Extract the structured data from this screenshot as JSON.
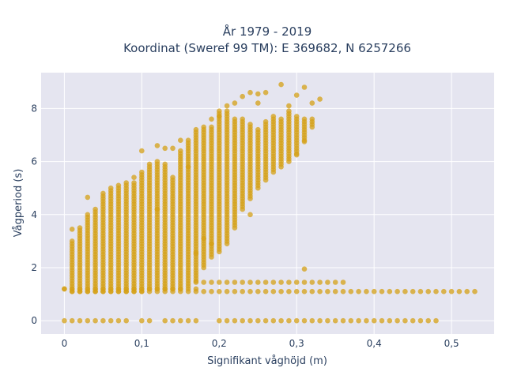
{
  "chart_data": {
    "type": "scatter",
    "title_line1": "År 1979 - 2019",
    "title_line2": "Koordinat (Sweref 99 TM): E 369682, N 6257266",
    "xlabel": "Signifikant våghöjd (m)",
    "ylabel": "Vågperiod (s)",
    "xlim": [
      -0.03,
      0.555
    ],
    "ylim": [
      -0.5,
      9.35
    ],
    "x_ticks": [
      0,
      0.1,
      0.2,
      0.3,
      0.4,
      0.5
    ],
    "x_tick_labels": [
      "0",
      "0,1",
      "0,2",
      "0,3",
      "0,4",
      "0,5"
    ],
    "y_ticks": [
      0,
      2,
      4,
      6,
      8
    ],
    "y_tick_labels": [
      "0",
      "2",
      "4",
      "6",
      "8"
    ],
    "grid": true,
    "background_color": "#e5e5f0",
    "marker_color": "#d4a017",
    "x_step": 0.01,
    "column_ranges": [
      {
        "x": 0.01,
        "ymin": 1.1,
        "ymax": 3.0
      },
      {
        "x": 0.02,
        "ymin": 1.1,
        "ymax": 3.4
      },
      {
        "x": 0.03,
        "ymin": 1.1,
        "ymax": 4.0
      },
      {
        "x": 0.04,
        "ymin": 1.1,
        "ymax": 4.2
      },
      {
        "x": 0.05,
        "ymin": 1.1,
        "ymax": 4.8
      },
      {
        "x": 0.06,
        "ymin": 1.1,
        "ymax": 5.0
      },
      {
        "x": 0.07,
        "ymin": 1.1,
        "ymax": 5.1
      },
      {
        "x": 0.08,
        "ymin": 1.1,
        "ymax": 5.2
      },
      {
        "x": 0.09,
        "ymin": 1.1,
        "ymax": 5.2
      },
      {
        "x": 0.1,
        "ymin": 1.1,
        "ymax": 5.6
      },
      {
        "x": 0.11,
        "ymin": 1.2,
        "ymax": 5.9
      },
      {
        "x": 0.12,
        "ymin": 1.2,
        "ymax": 6.0
      },
      {
        "x": 0.13,
        "ymin": 1.2,
        "ymax": 5.9
      },
      {
        "x": 0.14,
        "ymin": 1.2,
        "ymax": 5.4
      },
      {
        "x": 0.15,
        "ymin": 1.2,
        "ymax": 6.4
      },
      {
        "x": 0.16,
        "ymin": 1.3,
        "ymax": 6.8
      },
      {
        "x": 0.17,
        "ymin": 1.5,
        "ymax": 7.2
      },
      {
        "x": 0.18,
        "ymin": 2.0,
        "ymax": 7.3
      },
      {
        "x": 0.19,
        "ymin": 2.4,
        "ymax": 7.3
      },
      {
        "x": 0.2,
        "ymin": 2.6,
        "ymax": 7.9
      },
      {
        "x": 0.21,
        "ymin": 2.9,
        "ymax": 7.9
      },
      {
        "x": 0.22,
        "ymin": 3.5,
        "ymax": 7.6
      },
      {
        "x": 0.23,
        "ymin": 4.2,
        "ymax": 7.6
      },
      {
        "x": 0.24,
        "ymin": 4.6,
        "ymax": 7.4
      },
      {
        "x": 0.25,
        "ymin": 5.0,
        "ymax": 7.2
      },
      {
        "x": 0.26,
        "ymin": 5.3,
        "ymax": 7.5
      },
      {
        "x": 0.27,
        "ymin": 5.6,
        "ymax": 7.7
      },
      {
        "x": 0.28,
        "ymin": 5.8,
        "ymax": 7.6
      },
      {
        "x": 0.29,
        "ymin": 6.0,
        "ymax": 7.9
      },
      {
        "x": 0.3,
        "ymin": 6.3,
        "ymax": 7.7
      },
      {
        "x": 0.31,
        "ymin": 6.8,
        "ymax": 7.6
      },
      {
        "x": 0.32,
        "ymin": 7.3,
        "ymax": 7.6
      }
    ],
    "bottom_rows": [
      {
        "y": 1.1,
        "xmin": 0.01,
        "xmax": 0.53
      },
      {
        "y": 1.2,
        "xmin": 0.0,
        "xmax": 0.17
      },
      {
        "y": 1.45,
        "xmin": 0.17,
        "xmax": 0.36
      }
    ],
    "zero_row": {
      "y": 0,
      "x_values": [
        0.0,
        0.01,
        0.02,
        0.03,
        0.04,
        0.05,
        0.06,
        0.07,
        0.08,
        0.1,
        0.11,
        0.13,
        0.14,
        0.15,
        0.16,
        0.17,
        0.2,
        0.21,
        0.22,
        0.23,
        0.24,
        0.25,
        0.26,
        0.27,
        0.28,
        0.29,
        0.3,
        0.31,
        0.32,
        0.33,
        0.34,
        0.35,
        0.36,
        0.37,
        0.38,
        0.39,
        0.4,
        0.41,
        0.42,
        0.43,
        0.44,
        0.45,
        0.46,
        0.47,
        0.48
      ]
    },
    "outliers": [
      {
        "x": 0.0,
        "y": 1.2
      },
      {
        "x": 0.01,
        "y": 3.45
      },
      {
        "x": 0.02,
        "y": 3.5
      },
      {
        "x": 0.03,
        "y": 4.65
      },
      {
        "x": 0.09,
        "y": 5.4
      },
      {
        "x": 0.1,
        "y": 6.4
      },
      {
        "x": 0.12,
        "y": 6.6
      },
      {
        "x": 0.12,
        "y": 4.2
      },
      {
        "x": 0.13,
        "y": 6.5
      },
      {
        "x": 0.14,
        "y": 6.5
      },
      {
        "x": 0.15,
        "y": 6.8
      },
      {
        "x": 0.16,
        "y": 5.8
      },
      {
        "x": 0.19,
        "y": 7.6
      },
      {
        "x": 0.2,
        "y": 7.7
      },
      {
        "x": 0.21,
        "y": 8.1
      },
      {
        "x": 0.22,
        "y": 8.2
      },
      {
        "x": 0.23,
        "y": 8.45
      },
      {
        "x": 0.24,
        "y": 8.6
      },
      {
        "x": 0.25,
        "y": 8.55
      },
      {
        "x": 0.25,
        "y": 8.2
      },
      {
        "x": 0.26,
        "y": 8.6
      },
      {
        "x": 0.28,
        "y": 8.9
      },
      {
        "x": 0.29,
        "y": 8.1
      },
      {
        "x": 0.3,
        "y": 8.5
      },
      {
        "x": 0.31,
        "y": 8.8
      },
      {
        "x": 0.32,
        "y": 8.2
      },
      {
        "x": 0.33,
        "y": 8.35
      },
      {
        "x": 0.31,
        "y": 6.75
      },
      {
        "x": 0.31,
        "y": 1.95
      },
      {
        "x": 0.3,
        "y": 6.25
      },
      {
        "x": 0.24,
        "y": 4.0
      },
      {
        "x": 0.19,
        "y": 2.9
      },
      {
        "x": 0.18,
        "y": 3.1
      },
      {
        "x": 0.17,
        "y": 2.55
      }
    ]
  }
}
